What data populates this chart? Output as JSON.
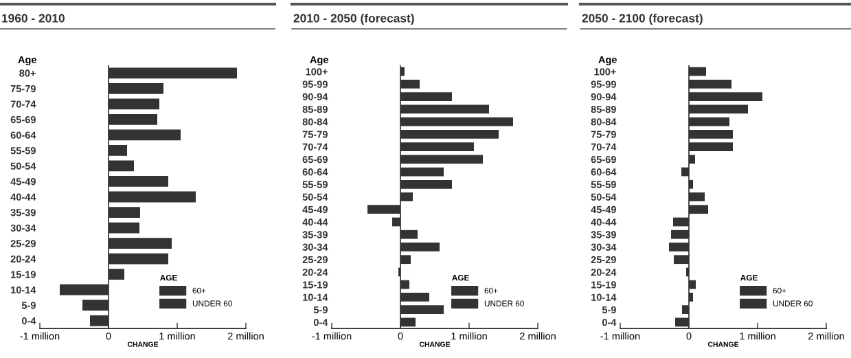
{
  "chart_data": [
    {
      "type": "bar",
      "orientation": "horizontal",
      "title": "1960 - 2010",
      "xlabel": "CHANGE",
      "ylabel": "Age",
      "legend_title": "AGE",
      "legend": "bottom right",
      "grid": false,
      "categories": [
        "80+",
        "75-79",
        "70-74",
        "65-69",
        "60-64",
        "55-59",
        "50-54",
        "45-49",
        "40-44",
        "35-39",
        "30-34",
        "25-29",
        "20-24",
        "15-19",
        "10-14",
        "5-9",
        "0-4"
      ],
      "series": [
        {
          "name": "60+",
          "color": "#333333",
          "values": [
            1.87,
            0.8,
            0.74,
            0.71,
            1.05,
            null,
            null,
            null,
            null,
            null,
            null,
            null,
            null,
            null,
            null,
            null,
            null
          ]
        },
        {
          "name": "UNDER 60",
          "color": "#333333",
          "values": [
            null,
            null,
            null,
            null,
            null,
            0.27,
            0.37,
            0.87,
            1.27,
            0.46,
            0.45,
            0.92,
            0.87,
            0.23,
            -0.71,
            -0.38,
            -0.27
          ]
        }
      ],
      "xlim": [
        -1,
        2
      ],
      "xticks": [
        {
          "value": -1,
          "label": "-1 million"
        },
        0,
        {
          "value": 1,
          "label": "1 million"
        },
        {
          "value": 2,
          "label": "2 million"
        }
      ],
      "ref_lines": [
        {
          "axis": "x",
          "value": 0,
          "color": "#333333"
        }
      ]
    },
    {
      "type": "bar",
      "orientation": "horizontal",
      "title": "2010 - 2050 (forecast)",
      "xlabel": "CHANGE",
      "ylabel": "Age",
      "legend_title": "AGE",
      "legend": "bottom right",
      "grid": false,
      "categories": [
        "100+",
        "95-99",
        "90-94",
        "85-89",
        "80-84",
        "75-79",
        "70-74",
        "65-69",
        "60-64",
        "55-59",
        "50-54",
        "45-49",
        "40-44",
        "35-39",
        "30-34",
        "25-29",
        "20-24",
        "15-19",
        "10-14",
        "5-9",
        "0-4"
      ],
      "series": [
        {
          "name": "60+",
          "color": "#333333",
          "values": [
            0.06,
            0.28,
            0.75,
            1.29,
            1.64,
            1.43,
            1.07,
            1.2,
            0.63,
            null,
            null,
            null,
            null,
            null,
            null,
            null,
            null,
            null,
            null,
            null,
            null
          ]
        },
        {
          "name": "UNDER 60",
          "color": "#333333",
          "values": [
            null,
            null,
            null,
            null,
            null,
            null,
            null,
            null,
            null,
            0.75,
            0.18,
            -0.48,
            -0.12,
            0.25,
            0.57,
            0.15,
            -0.03,
            0.13,
            0.42,
            0.63,
            0.22
          ]
        }
      ],
      "xlim": [
        -1,
        2
      ],
      "xticks": [
        {
          "value": -1,
          "label": "-1 million"
        },
        0,
        {
          "value": 1,
          "label": "1 million"
        },
        {
          "value": 2,
          "label": "2 million"
        }
      ],
      "ref_lines": [
        {
          "axis": "x",
          "value": 0,
          "color": "#333333"
        }
      ]
    },
    {
      "type": "bar",
      "orientation": "horizontal",
      "title": "2050 - 2100 (forecast)",
      "xlabel": "CHANGE",
      "ylabel": "Age",
      "legend_title": "AGE",
      "legend": "bottom right",
      "grid": false,
      "categories": [
        "100+",
        "95-99",
        "90-94",
        "85-89",
        "80-84",
        "75-79",
        "70-74",
        "65-69",
        "60-64",
        "55-59",
        "50-54",
        "45-49",
        "40-44",
        "35-39",
        "30-34",
        "25-29",
        "20-24",
        "15-19",
        "10-14",
        "5-9",
        "0-4"
      ],
      "series": [
        {
          "name": "60+",
          "color": "#333333",
          "values": [
            0.25,
            0.62,
            1.07,
            0.86,
            0.59,
            0.64,
            0.64,
            0.09,
            -0.11,
            null,
            null,
            null,
            null,
            null,
            null,
            null,
            null,
            null,
            null,
            null,
            null
          ]
        },
        {
          "name": "UNDER 60",
          "color": "#333333",
          "values": [
            null,
            null,
            null,
            null,
            null,
            null,
            null,
            null,
            null,
            0.06,
            0.23,
            0.28,
            -0.23,
            -0.26,
            -0.29,
            -0.22,
            -0.04,
            0.1,
            0.06,
            -0.1,
            -0.2
          ]
        }
      ],
      "xlim": [
        -1,
        2
      ],
      "xticks": [
        {
          "value": -1,
          "label": "-1 million"
        },
        0,
        {
          "value": 1,
          "label": "1 million"
        },
        {
          "value": 2,
          "label": "2 million"
        }
      ],
      "ref_lines": [
        {
          "axis": "x",
          "value": 0,
          "color": "#333333"
        }
      ]
    }
  ]
}
